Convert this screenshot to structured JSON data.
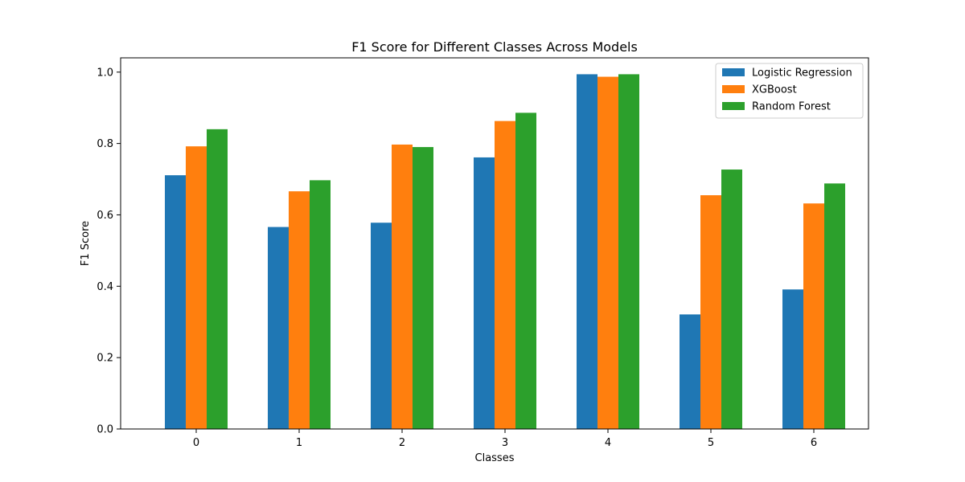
{
  "chart_data": {
    "type": "bar",
    "title": "F1 Score for Different Classes Across Models",
    "xlabel": "Classes",
    "ylabel": "F1 Score",
    "categories": [
      "0",
      "1",
      "2",
      "3",
      "4",
      "5",
      "6"
    ],
    "ylim": [
      0,
      1.04
    ],
    "yticks": [
      "0.0",
      "0.2",
      "0.4",
      "0.6",
      "0.8",
      "1.0"
    ],
    "grid": false,
    "legend_position": "top-right",
    "series": [
      {
        "name": "Logistic Regression",
        "color": "#1f77b4",
        "values": [
          0.711,
          0.566,
          0.578,
          0.761,
          0.994,
          0.321,
          0.391
        ]
      },
      {
        "name": "XGBoost",
        "color": "#ff7f0e",
        "values": [
          0.792,
          0.666,
          0.797,
          0.863,
          0.987,
          0.655,
          0.632
        ]
      },
      {
        "name": "Random Forest",
        "color": "#2ca02c",
        "values": [
          0.84,
          0.697,
          0.79,
          0.886,
          0.994,
          0.727,
          0.688
        ]
      }
    ]
  }
}
